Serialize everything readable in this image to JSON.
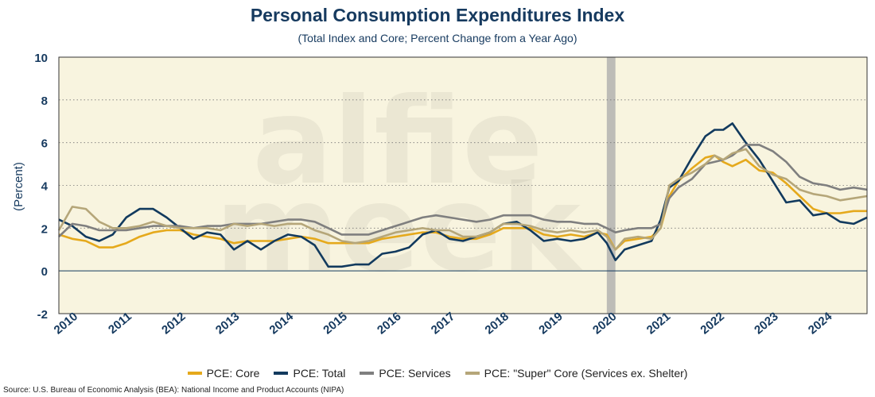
{
  "chart_data": {
    "type": "line",
    "title": "Personal Consumption Expenditures Index",
    "subtitle": "(Total Index and Core; Percent Change from a Year Ago)",
    "ylabel": "(Percent)",
    "xlabel": "",
    "ylim": [
      -2,
      10
    ],
    "yticks": [
      -2,
      0,
      2,
      4,
      6,
      8,
      10
    ],
    "xlim": [
      2010.0,
      2025.0
    ],
    "xticks": [
      2010,
      2011,
      2012,
      2013,
      2014,
      2015,
      2016,
      2017,
      2018,
      2019,
      2020,
      2021,
      2022,
      2023,
      2024
    ],
    "grid": "horizontal dotted",
    "legend_position": "bottom",
    "background": "#f8f4df",
    "recession_band": [
      2020.17,
      2020.33
    ],
    "watermark": "alfie meek",
    "series": [
      {
        "name": "PCE: Core",
        "color": "#e5a91c",
        "x": [
          2010.0,
          2010.25,
          2010.5,
          2010.75,
          2011.0,
          2011.25,
          2011.5,
          2011.75,
          2012.0,
          2012.25,
          2012.5,
          2012.75,
          2013.0,
          2013.25,
          2013.5,
          2013.75,
          2014.0,
          2014.25,
          2014.5,
          2014.75,
          2015.0,
          2015.25,
          2015.5,
          2015.75,
          2016.0,
          2016.25,
          2016.5,
          2016.75,
          2017.0,
          2017.25,
          2017.5,
          2017.75,
          2018.0,
          2018.25,
          2018.5,
          2018.75,
          2019.0,
          2019.25,
          2019.5,
          2019.75,
          2020.0,
          2020.17,
          2020.33,
          2020.5,
          2020.75,
          2021.0,
          2021.17,
          2021.33,
          2021.5,
          2021.75,
          2022.0,
          2022.17,
          2022.33,
          2022.5,
          2022.75,
          2023.0,
          2023.25,
          2023.5,
          2023.75,
          2024.0,
          2024.25,
          2024.5,
          2024.75,
          2025.0
        ],
        "values": [
          1.7,
          1.5,
          1.4,
          1.1,
          1.1,
          1.3,
          1.6,
          1.8,
          1.9,
          1.9,
          1.7,
          1.6,
          1.5,
          1.3,
          1.4,
          1.4,
          1.4,
          1.5,
          1.6,
          1.5,
          1.3,
          1.3,
          1.3,
          1.3,
          1.5,
          1.6,
          1.7,
          1.8,
          1.8,
          1.6,
          1.5,
          1.5,
          1.7,
          2.0,
          2.0,
          2.0,
          1.7,
          1.6,
          1.7,
          1.6,
          1.8,
          1.7,
          1.0,
          1.4,
          1.5,
          1.6,
          2.0,
          3.5,
          4.2,
          4.8,
          5.3,
          5.4,
          5.1,
          4.9,
          5.2,
          4.7,
          4.6,
          4.1,
          3.5,
          2.9,
          2.7,
          2.7,
          2.8,
          2.8
        ]
      },
      {
        "name": "PCE: Total",
        "color": "#123a5e",
        "x": [
          2010.0,
          2010.25,
          2010.5,
          2010.75,
          2011.0,
          2011.25,
          2011.5,
          2011.75,
          2012.0,
          2012.25,
          2012.5,
          2012.75,
          2013.0,
          2013.25,
          2013.5,
          2013.75,
          2014.0,
          2014.25,
          2014.5,
          2014.75,
          2015.0,
          2015.25,
          2015.5,
          2015.75,
          2016.0,
          2016.25,
          2016.5,
          2016.75,
          2017.0,
          2017.25,
          2017.5,
          2017.75,
          2018.0,
          2018.25,
          2018.5,
          2018.75,
          2019.0,
          2019.25,
          2019.5,
          2019.75,
          2020.0,
          2020.17,
          2020.33,
          2020.5,
          2020.75,
          2021.0,
          2021.17,
          2021.33,
          2021.5,
          2021.75,
          2022.0,
          2022.17,
          2022.33,
          2022.5,
          2022.75,
          2023.0,
          2023.25,
          2023.5,
          2023.75,
          2024.0,
          2024.25,
          2024.5,
          2024.75,
          2025.0
        ],
        "values": [
          2.4,
          2.1,
          1.6,
          1.4,
          1.7,
          2.5,
          2.9,
          2.9,
          2.5,
          2.0,
          1.5,
          1.8,
          1.7,
          1.0,
          1.4,
          1.0,
          1.4,
          1.7,
          1.6,
          1.2,
          0.2,
          0.2,
          0.3,
          0.3,
          0.8,
          0.9,
          1.1,
          1.7,
          1.9,
          1.5,
          1.4,
          1.6,
          1.8,
          2.2,
          2.3,
          1.9,
          1.4,
          1.5,
          1.4,
          1.5,
          1.8,
          1.3,
          0.5,
          1.0,
          1.2,
          1.4,
          2.4,
          3.9,
          4.2,
          5.3,
          6.3,
          6.6,
          6.6,
          6.9,
          6.0,
          5.2,
          4.2,
          3.2,
          3.3,
          2.6,
          2.7,
          2.3,
          2.2,
          2.5
        ]
      },
      {
        "name": "PCE: Services",
        "color": "#7f7f7f",
        "x": [
          2010.0,
          2010.25,
          2010.5,
          2010.75,
          2011.0,
          2011.25,
          2011.5,
          2011.75,
          2012.0,
          2012.25,
          2012.5,
          2012.75,
          2013.0,
          2013.25,
          2013.5,
          2013.75,
          2014.0,
          2014.25,
          2014.5,
          2014.75,
          2015.0,
          2015.25,
          2015.5,
          2015.75,
          2016.0,
          2016.25,
          2016.5,
          2016.75,
          2017.0,
          2017.25,
          2017.5,
          2017.75,
          2018.0,
          2018.25,
          2018.5,
          2018.75,
          2019.0,
          2019.25,
          2019.5,
          2019.75,
          2020.0,
          2020.17,
          2020.33,
          2020.5,
          2020.75,
          2021.0,
          2021.17,
          2021.33,
          2021.5,
          2021.75,
          2022.0,
          2022.17,
          2022.33,
          2022.5,
          2022.75,
          2023.0,
          2023.25,
          2023.5,
          2023.75,
          2024.0,
          2024.25,
          2024.5,
          2024.75,
          2025.0
        ],
        "values": [
          1.6,
          2.2,
          2.1,
          1.9,
          1.9,
          1.9,
          2.0,
          2.1,
          2.1,
          2.1,
          2.0,
          2.1,
          2.1,
          2.2,
          2.2,
          2.2,
          2.3,
          2.4,
          2.4,
          2.3,
          2.0,
          1.7,
          1.7,
          1.7,
          1.9,
          2.1,
          2.3,
          2.5,
          2.6,
          2.5,
          2.4,
          2.3,
          2.4,
          2.6,
          2.6,
          2.6,
          2.4,
          2.3,
          2.3,
          2.2,
          2.2,
          2.0,
          1.8,
          1.9,
          2.0,
          2.0,
          2.2,
          3.4,
          3.9,
          4.3,
          5.0,
          5.1,
          5.2,
          5.4,
          5.9,
          5.9,
          5.6,
          5.1,
          4.4,
          4.1,
          4.0,
          3.8,
          3.9,
          3.8
        ]
      },
      {
        "name": "PCE: \"Super\" Core (Services ex. Shelter)",
        "color": "#b5a679",
        "x": [
          2010.0,
          2010.25,
          2010.5,
          2010.75,
          2011.0,
          2011.25,
          2011.5,
          2011.75,
          2012.0,
          2012.25,
          2012.5,
          2012.75,
          2013.0,
          2013.25,
          2013.5,
          2013.75,
          2014.0,
          2014.25,
          2014.5,
          2014.75,
          2015.0,
          2015.25,
          2015.5,
          2015.75,
          2016.0,
          2016.25,
          2016.5,
          2016.75,
          2017.0,
          2017.25,
          2017.5,
          2017.75,
          2018.0,
          2018.25,
          2018.5,
          2018.75,
          2019.0,
          2019.25,
          2019.5,
          2019.75,
          2020.0,
          2020.17,
          2020.33,
          2020.5,
          2020.75,
          2021.0,
          2021.17,
          2021.33,
          2021.5,
          2021.75,
          2022.0,
          2022.17,
          2022.33,
          2022.5,
          2022.75,
          2023.0,
          2023.25,
          2023.5,
          2023.75,
          2024.0,
          2024.25,
          2024.5,
          2024.75,
          2025.0
        ],
        "values": [
          1.9,
          3.0,
          2.9,
          2.3,
          2.0,
          2.0,
          2.1,
          2.3,
          2.1,
          2.0,
          2.0,
          2.0,
          1.9,
          2.2,
          2.1,
          2.2,
          2.1,
          2.2,
          2.2,
          1.9,
          1.7,
          1.4,
          1.3,
          1.4,
          1.6,
          1.8,
          1.9,
          2.0,
          1.9,
          1.9,
          1.6,
          1.6,
          1.8,
          2.2,
          2.2,
          2.1,
          1.9,
          1.8,
          1.9,
          1.8,
          1.9,
          1.6,
          1.0,
          1.5,
          1.6,
          1.5,
          2.0,
          4.0,
          4.3,
          4.6,
          5.0,
          5.4,
          5.2,
          5.5,
          5.7,
          4.9,
          4.5,
          4.3,
          3.8,
          3.6,
          3.5,
          3.3,
          3.4,
          3.5
        ]
      }
    ]
  },
  "source": "Source: U.S. Bureau of Economic Analysis (BEA): National Income and Product Accounts (NIPA)"
}
